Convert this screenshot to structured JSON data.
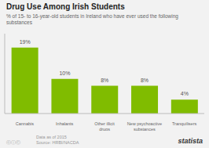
{
  "chart_data": {
    "type": "bar",
    "title": "Drug Use Among Irish Students",
    "subtitle": "% of 15- to 16-year-old students in Ireland who have ever used the following substances",
    "categories": [
      "Cannabis",
      "Inhalants",
      "Other illicit\ndrugs",
      "New psychoactive\nsubstances",
      "Tranquilisers"
    ],
    "values": [
      19,
      10,
      8,
      8,
      4
    ],
    "value_labels": [
      "19%",
      "10%",
      "8%",
      "8%",
      "4%"
    ],
    "data_labels": true,
    "color": "#80bc00",
    "ylim": [
      0,
      23
    ],
    "tick_labels": "x",
    "grid": false,
    "annotations": [
      "Data as of 2015\nSource: HRBI/NACDA",
      "ⓒⓘⒸ",
      "statista"
    ]
  }
}
